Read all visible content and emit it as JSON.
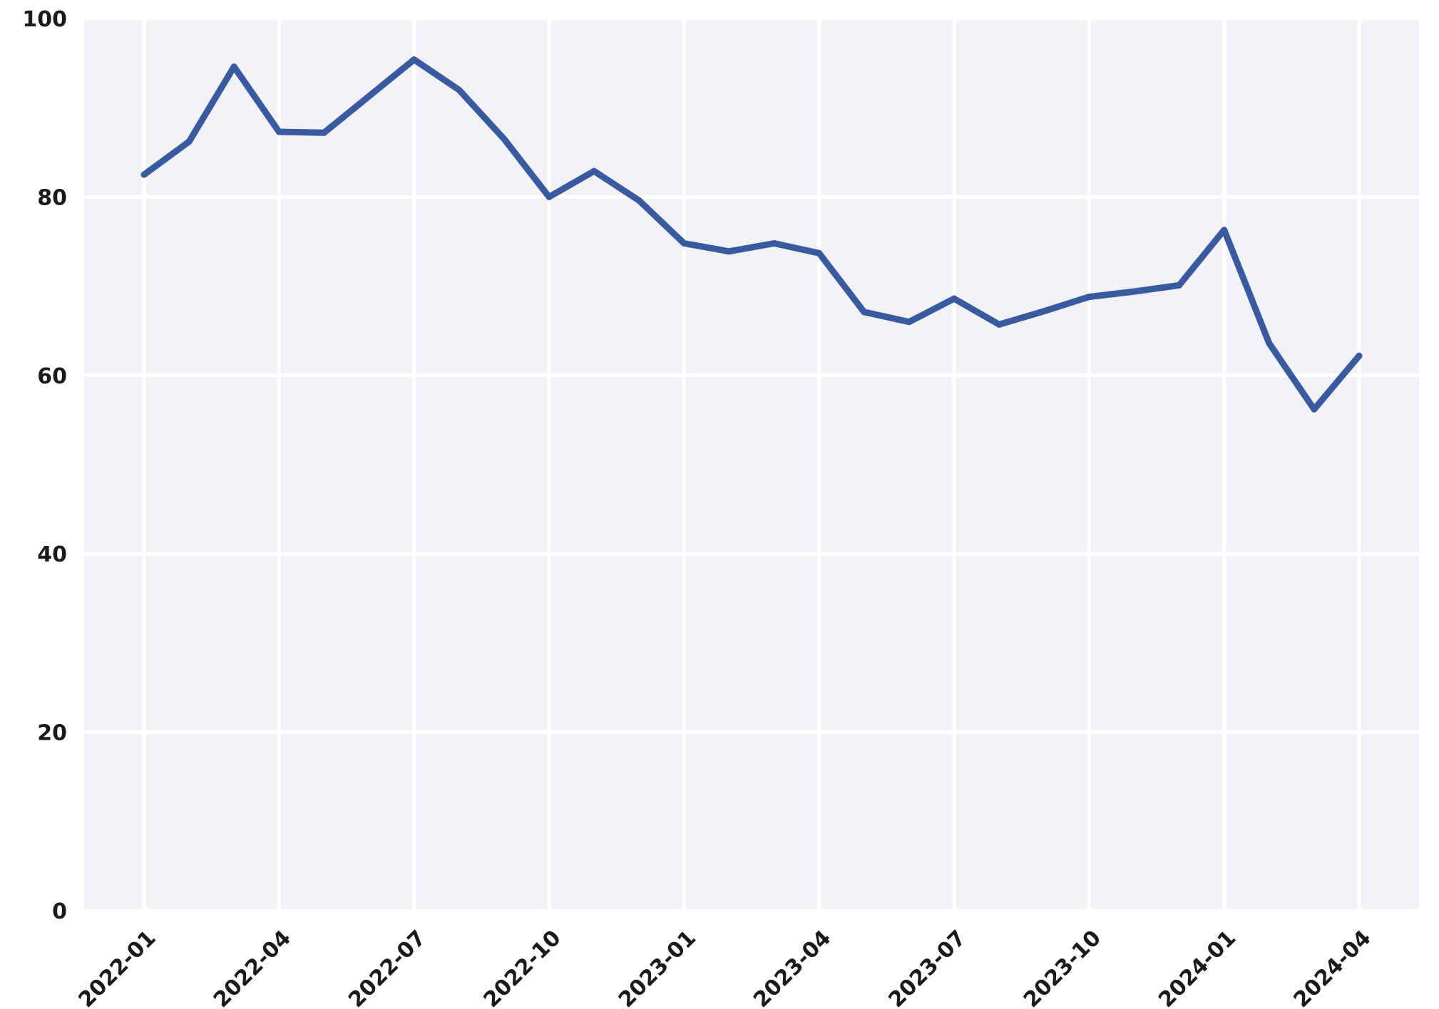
{
  "chart_data": {
    "type": "line",
    "title": "",
    "xlabel": "",
    "ylabel": "",
    "x": [
      "2022-01",
      "2022-02",
      "2022-03",
      "2022-04",
      "2022-05",
      "2022-06",
      "2022-07",
      "2022-08",
      "2022-09",
      "2022-10",
      "2022-11",
      "2022-12",
      "2023-01",
      "2023-02",
      "2023-03",
      "2023-04",
      "2023-05",
      "2023-06",
      "2023-07",
      "2023-08",
      "2023-09",
      "2023-10",
      "2023-11",
      "2023-12",
      "2024-01",
      "2024-02",
      "2024-03",
      "2024-04"
    ],
    "series": [
      {
        "values": [
          82.5,
          86.2,
          94.6,
          87.3,
          87.2,
          91.3,
          95.4,
          92.0,
          86.5,
          80.0,
          82.9,
          79.6,
          74.8,
          73.9,
          74.8,
          73.7,
          67.1,
          66.0,
          68.6,
          65.7,
          67.2,
          68.8,
          69.4,
          70.1,
          76.3,
          63.6,
          56.2,
          62.2
        ],
        "color": "#3a5aa0"
      }
    ],
    "xticks": [
      "2022-01",
      "2022-04",
      "2022-07",
      "2022-10",
      "2023-01",
      "2023-04",
      "2023-07",
      "2023-10",
      "2024-01",
      "2024-04"
    ],
    "yticks": [
      "0",
      "20",
      "40",
      "60",
      "80",
      "100"
    ],
    "ylim": [
      0,
      100
    ],
    "grid": true,
    "background": "#f2f1f6",
    "grid_color": "#ffffff"
  }
}
